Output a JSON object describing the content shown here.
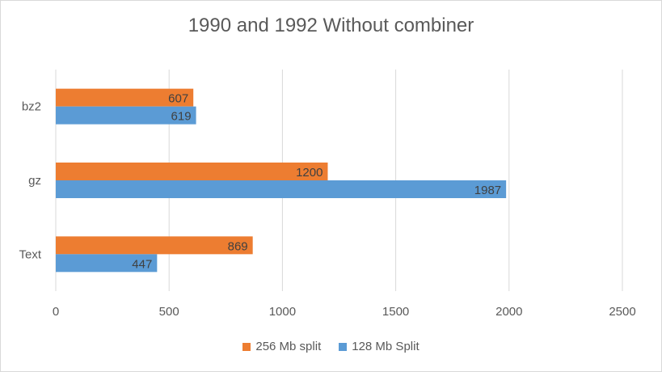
{
  "chart_data": {
    "type": "bar",
    "orientation": "horizontal",
    "title": "1990 and 1992 Without combiner",
    "categories": [
      "bz2",
      "gz",
      "Text"
    ],
    "series": [
      {
        "name": "256 Mb split",
        "color": "#ed7d31",
        "values": [
          607,
          1200,
          869
        ]
      },
      {
        "name": "128 Mb Split",
        "color": "#5b9bd5",
        "values": [
          619,
          1987,
          447
        ]
      }
    ],
    "xlim": [
      0,
      2500
    ],
    "xticks": [
      0,
      500,
      1000,
      1500,
      2000,
      2500
    ],
    "grid": true,
    "legend": "bottom"
  }
}
